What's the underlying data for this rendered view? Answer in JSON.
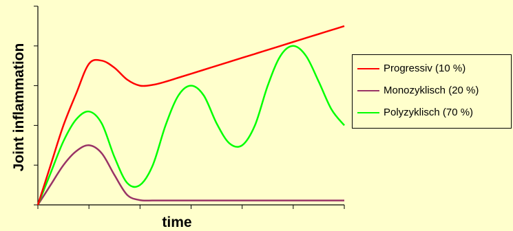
{
  "chart_data": {
    "type": "line",
    "xlabel": "time",
    "ylabel": "Joint inflammation",
    "x": [
      0,
      0.25,
      0.5,
      0.75,
      1,
      1.25,
      1.5,
      1.75,
      2,
      2.25,
      2.5,
      2.75,
      3,
      3.25,
      3.5,
      3.75,
      4,
      4.25,
      4.5,
      4.75,
      5,
      5.25,
      5.5,
      5.75,
      6
    ],
    "xlim": [
      0,
      6
    ],
    "ylim": [
      0,
      5
    ],
    "grid": false,
    "legend_position": "right",
    "series": [
      {
        "name": "Progressiv (10 %)",
        "color": "#ff0000",
        "values": [
          0,
          1.0,
          2.0,
          2.8,
          3.55,
          3.63,
          3.45,
          3.15,
          3.0,
          3.02,
          3.1,
          3.2,
          3.3,
          3.4,
          3.5,
          3.6,
          3.7,
          3.8,
          3.9,
          4.0,
          4.1,
          4.2,
          4.3,
          4.4,
          4.5
        ]
      },
      {
        "name": "Monozyklisch (20 %)",
        "color": "#993366",
        "values": [
          0,
          0.5,
          1.0,
          1.35,
          1.5,
          1.3,
          0.75,
          0.25,
          0.12,
          0.11,
          0.11,
          0.11,
          0.11,
          0.11,
          0.11,
          0.11,
          0.11,
          0.11,
          0.11,
          0.11,
          0.11,
          0.11,
          0.11,
          0.11,
          0.11
        ]
      },
      {
        "name": "Polyzyklisch (70 %)",
        "color": "#00ff00",
        "values": [
          0,
          0.8,
          1.6,
          2.15,
          2.35,
          2.05,
          1.2,
          0.55,
          0.5,
          1.0,
          2.0,
          2.75,
          3.0,
          2.75,
          2.05,
          1.55,
          1.5,
          2.0,
          3.0,
          3.75,
          4.0,
          3.75,
          3.1,
          2.4,
          2.0
        ]
      }
    ]
  }
}
